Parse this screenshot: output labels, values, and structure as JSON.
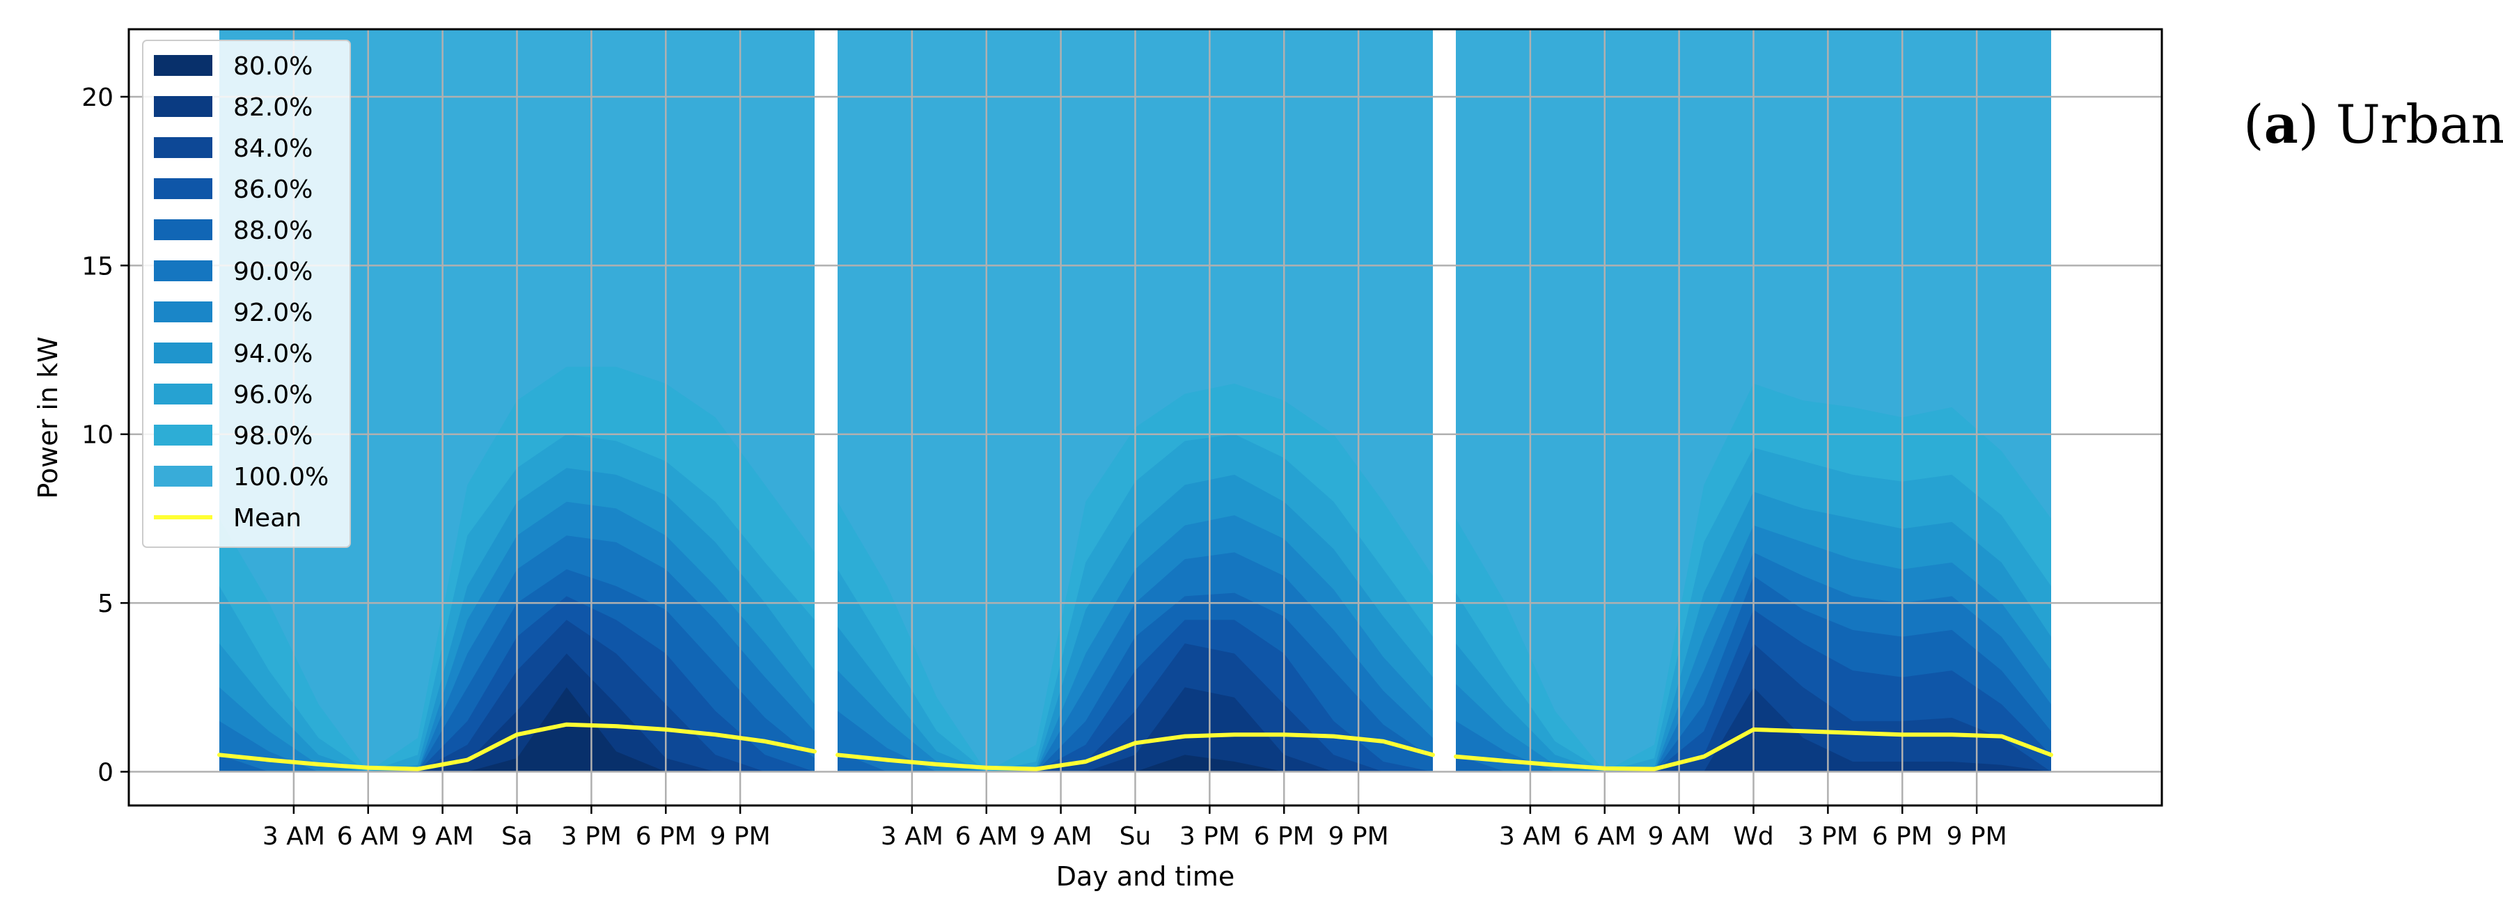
{
  "panel_label": {
    "open": "(",
    "letter": "a",
    "close": ") Urban"
  },
  "colors": {
    "bands": [
      "#08306b",
      "#0a3b82",
      "#0d4896",
      "#0f56a8",
      "#1166b5",
      "#1576c0",
      "#1a86c8",
      "#1f95cd",
      "#26a2d2",
      "#2dadd6",
      "#38acd9"
    ],
    "mean": "#ffff33",
    "grid": "#b0b0b0"
  },
  "chart_data": {
    "type": "area",
    "xlabel": "Day and time",
    "ylabel": "Power in kW",
    "ylim": [
      -1,
      22
    ],
    "yticks": [
      0,
      5,
      10,
      15,
      20
    ],
    "grid": true,
    "legend_position": "upper-left",
    "series": [
      {
        "name": "80.0%"
      },
      {
        "name": "82.0%"
      },
      {
        "name": "84.0%"
      },
      {
        "name": "86.0%"
      },
      {
        "name": "88.0%"
      },
      {
        "name": "90.0%"
      },
      {
        "name": "92.0%"
      },
      {
        "name": "94.0%"
      },
      {
        "name": "96.0%"
      },
      {
        "name": "98.0%"
      },
      {
        "name": "100.0%"
      },
      {
        "name": "Mean"
      }
    ],
    "days": [
      {
        "label": "Sa",
        "hour_ticks": [
          "3 AM",
          "6 AM",
          "9 AM",
          "",
          "3 PM",
          "6 PM",
          "9 PM"
        ],
        "hours": [
          0,
          2,
          4,
          6,
          8,
          10,
          12,
          14,
          16,
          18,
          20,
          22,
          24
        ],
        "quantiles": {
          "80.0%": [
            0.0,
            0.0,
            0.0,
            0.0,
            0.0,
            0.0,
            0.4,
            2.5,
            0.6,
            0.0,
            0.0,
            0.0,
            0.0
          ],
          "82.0%": [
            0.0,
            0.0,
            0.0,
            0.0,
            0.0,
            0.3,
            1.8,
            3.5,
            2.0,
            0.4,
            0.0,
            0.0,
            0.0
          ],
          "84.0%": [
            0.0,
            0.0,
            0.0,
            0.0,
            0.0,
            0.8,
            3.0,
            4.5,
            3.5,
            2.0,
            0.5,
            0.0,
            0.0
          ],
          "86.0%": [
            0.0,
            0.0,
            0.0,
            0.0,
            0.0,
            1.5,
            4.0,
            5.2,
            4.5,
            3.5,
            1.8,
            0.5,
            0.0
          ],
          "88.0%": [
            0.5,
            0.0,
            0.0,
            0.0,
            0.0,
            2.5,
            5.0,
            6.0,
            5.5,
            4.8,
            3.2,
            1.6,
            0.4
          ],
          "90.0%": [
            1.5,
            0.6,
            0.0,
            0.0,
            0.0,
            3.5,
            6.0,
            7.0,
            6.8,
            6.0,
            4.5,
            2.8,
            1.2
          ],
          "92.0%": [
            2.5,
            1.2,
            0.2,
            0.0,
            0.0,
            4.5,
            7.0,
            8.0,
            7.8,
            7.0,
            5.5,
            3.8,
            2.0
          ],
          "94.0%": [
            3.8,
            2.0,
            0.5,
            0.0,
            0.2,
            5.5,
            8.0,
            9.0,
            8.8,
            8.2,
            6.8,
            5.0,
            3.0
          ],
          "96.0%": [
            5.5,
            3.0,
            1.0,
            0.0,
            0.5,
            7.0,
            9.0,
            10.0,
            9.8,
            9.2,
            8.0,
            6.2,
            4.5
          ],
          "98.0%": [
            7.5,
            5.0,
            2.0,
            0.0,
            1.0,
            8.5,
            11.0,
            12.0,
            12.0,
            11.5,
            10.5,
            8.5,
            6.5
          ],
          "100.0%": [
            22.0,
            22.0,
            22.0,
            22.0,
            22.0,
            22.0,
            22.0,
            22.0,
            22.0,
            22.0,
            22.0,
            22.0,
            22.0
          ],
          "Mean": [
            0.5,
            0.35,
            0.22,
            0.12,
            0.08,
            0.35,
            1.1,
            1.4,
            1.35,
            1.25,
            1.1,
            0.9,
            0.6
          ]
        }
      },
      {
        "label": "Su",
        "hour_ticks": [
          "3 AM",
          "6 AM",
          "9 AM",
          "",
          "3 PM",
          "6 PM",
          "9 PM"
        ],
        "hours": [
          0,
          2,
          4,
          6,
          8,
          10,
          12,
          14,
          16,
          18,
          20,
          22,
          24
        ],
        "quantiles": {
          "80.0%": [
            0.0,
            0.0,
            0.0,
            0.0,
            0.0,
            0.0,
            0.0,
            0.5,
            0.3,
            0.0,
            0.0,
            0.0,
            0.0
          ],
          "82.0%": [
            0.0,
            0.0,
            0.0,
            0.0,
            0.0,
            0.0,
            0.5,
            2.5,
            2.2,
            0.5,
            0.0,
            0.0,
            0.0
          ],
          "84.0%": [
            0.0,
            0.0,
            0.0,
            0.0,
            0.0,
            0.3,
            1.8,
            3.8,
            3.5,
            2.0,
            0.5,
            0.0,
            0.0
          ],
          "86.0%": [
            0.0,
            0.0,
            0.0,
            0.0,
            0.0,
            0.8,
            3.0,
            4.5,
            4.5,
            3.5,
            1.5,
            0.3,
            0.0
          ],
          "88.0%": [
            0.6,
            0.0,
            0.0,
            0.0,
            0.0,
            1.5,
            4.0,
            5.2,
            5.3,
            4.6,
            3.0,
            1.4,
            0.4
          ],
          "90.0%": [
            1.8,
            0.7,
            0.0,
            0.0,
            0.0,
            2.5,
            5.0,
            6.3,
            6.5,
            5.8,
            4.2,
            2.4,
            1.0
          ],
          "92.0%": [
            3.0,
            1.5,
            0.3,
            0.0,
            0.0,
            3.5,
            6.0,
            7.3,
            7.6,
            6.9,
            5.4,
            3.4,
            1.8
          ],
          "94.0%": [
            4.3,
            2.4,
            0.6,
            0.0,
            0.1,
            4.8,
            7.2,
            8.5,
            8.8,
            8.0,
            6.6,
            4.6,
            2.8
          ],
          "96.0%": [
            6.0,
            3.6,
            1.2,
            0.0,
            0.3,
            6.2,
            8.6,
            9.8,
            10.0,
            9.3,
            8.0,
            6.0,
            4.0
          ],
          "98.0%": [
            8.0,
            5.5,
            2.2,
            0.0,
            0.8,
            8.0,
            10.2,
            11.2,
            11.5,
            11.0,
            10.0,
            8.0,
            5.8
          ],
          "100.0%": [
            22.0,
            22.0,
            22.0,
            22.0,
            22.0,
            22.0,
            22.0,
            22.0,
            22.0,
            22.0,
            22.0,
            22.0,
            22.0
          ],
          "Mean": [
            0.5,
            0.35,
            0.22,
            0.12,
            0.08,
            0.3,
            0.85,
            1.05,
            1.1,
            1.1,
            1.05,
            0.9,
            0.5
          ]
        }
      },
      {
        "label": "Wd",
        "hour_ticks": [
          "3 AM",
          "6 AM",
          "9 AM",
          "",
          "3 PM",
          "6 PM",
          "9 PM"
        ],
        "hours": [
          0,
          2,
          4,
          6,
          8,
          10,
          12,
          14,
          16,
          18,
          20,
          22,
          24
        ],
        "quantiles": {
          "80.0%": [
            0.0,
            0.0,
            0.0,
            0.0,
            0.0,
            0.0,
            0.0,
            0.0,
            0.0,
            0.0,
            0.0,
            0.0,
            0.0
          ],
          "82.0%": [
            0.0,
            0.0,
            0.0,
            0.0,
            0.0,
            0.0,
            2.5,
            1.0,
            0.3,
            0.3,
            0.3,
            0.2,
            0.0
          ],
          "84.0%": [
            0.0,
            0.0,
            0.0,
            0.0,
            0.0,
            0.5,
            3.8,
            2.5,
            1.5,
            1.5,
            1.6,
            1.0,
            0.0
          ],
          "86.0%": [
            0.0,
            0.0,
            0.0,
            0.0,
            0.0,
            1.2,
            4.8,
            3.8,
            3.0,
            2.8,
            3.0,
            2.0,
            0.5
          ],
          "88.0%": [
            0.5,
            0.0,
            0.0,
            0.0,
            0.0,
            2.0,
            5.8,
            4.8,
            4.2,
            4.0,
            4.2,
            3.0,
            1.2
          ],
          "90.0%": [
            1.5,
            0.6,
            0.0,
            0.0,
            0.0,
            3.0,
            6.5,
            5.8,
            5.2,
            5.0,
            5.2,
            4.0,
            2.0
          ],
          "92.0%": [
            2.6,
            1.2,
            0.2,
            0.0,
            0.0,
            4.0,
            7.3,
            6.8,
            6.3,
            6.0,
            6.2,
            5.0,
            3.0
          ],
          "94.0%": [
            3.8,
            2.0,
            0.5,
            0.0,
            0.1,
            5.3,
            8.3,
            7.8,
            7.5,
            7.2,
            7.4,
            6.2,
            4.0
          ],
          "96.0%": [
            5.3,
            3.0,
            0.9,
            0.0,
            0.4,
            6.8,
            9.6,
            9.2,
            8.8,
            8.6,
            8.8,
            7.6,
            5.5
          ],
          "98.0%": [
            7.5,
            5.0,
            1.8,
            0.0,
            0.8,
            8.5,
            11.5,
            11.0,
            10.8,
            10.5,
            10.8,
            9.5,
            7.5
          ],
          "100.0%": [
            22.0,
            22.0,
            22.0,
            22.0,
            22.0,
            22.0,
            22.0,
            22.0,
            22.0,
            22.0,
            22.0,
            22.0,
            22.0
          ],
          "Mean": [
            0.45,
            0.32,
            0.2,
            0.1,
            0.08,
            0.45,
            1.25,
            1.2,
            1.15,
            1.1,
            1.1,
            1.05,
            0.5
          ]
        }
      }
    ]
  }
}
